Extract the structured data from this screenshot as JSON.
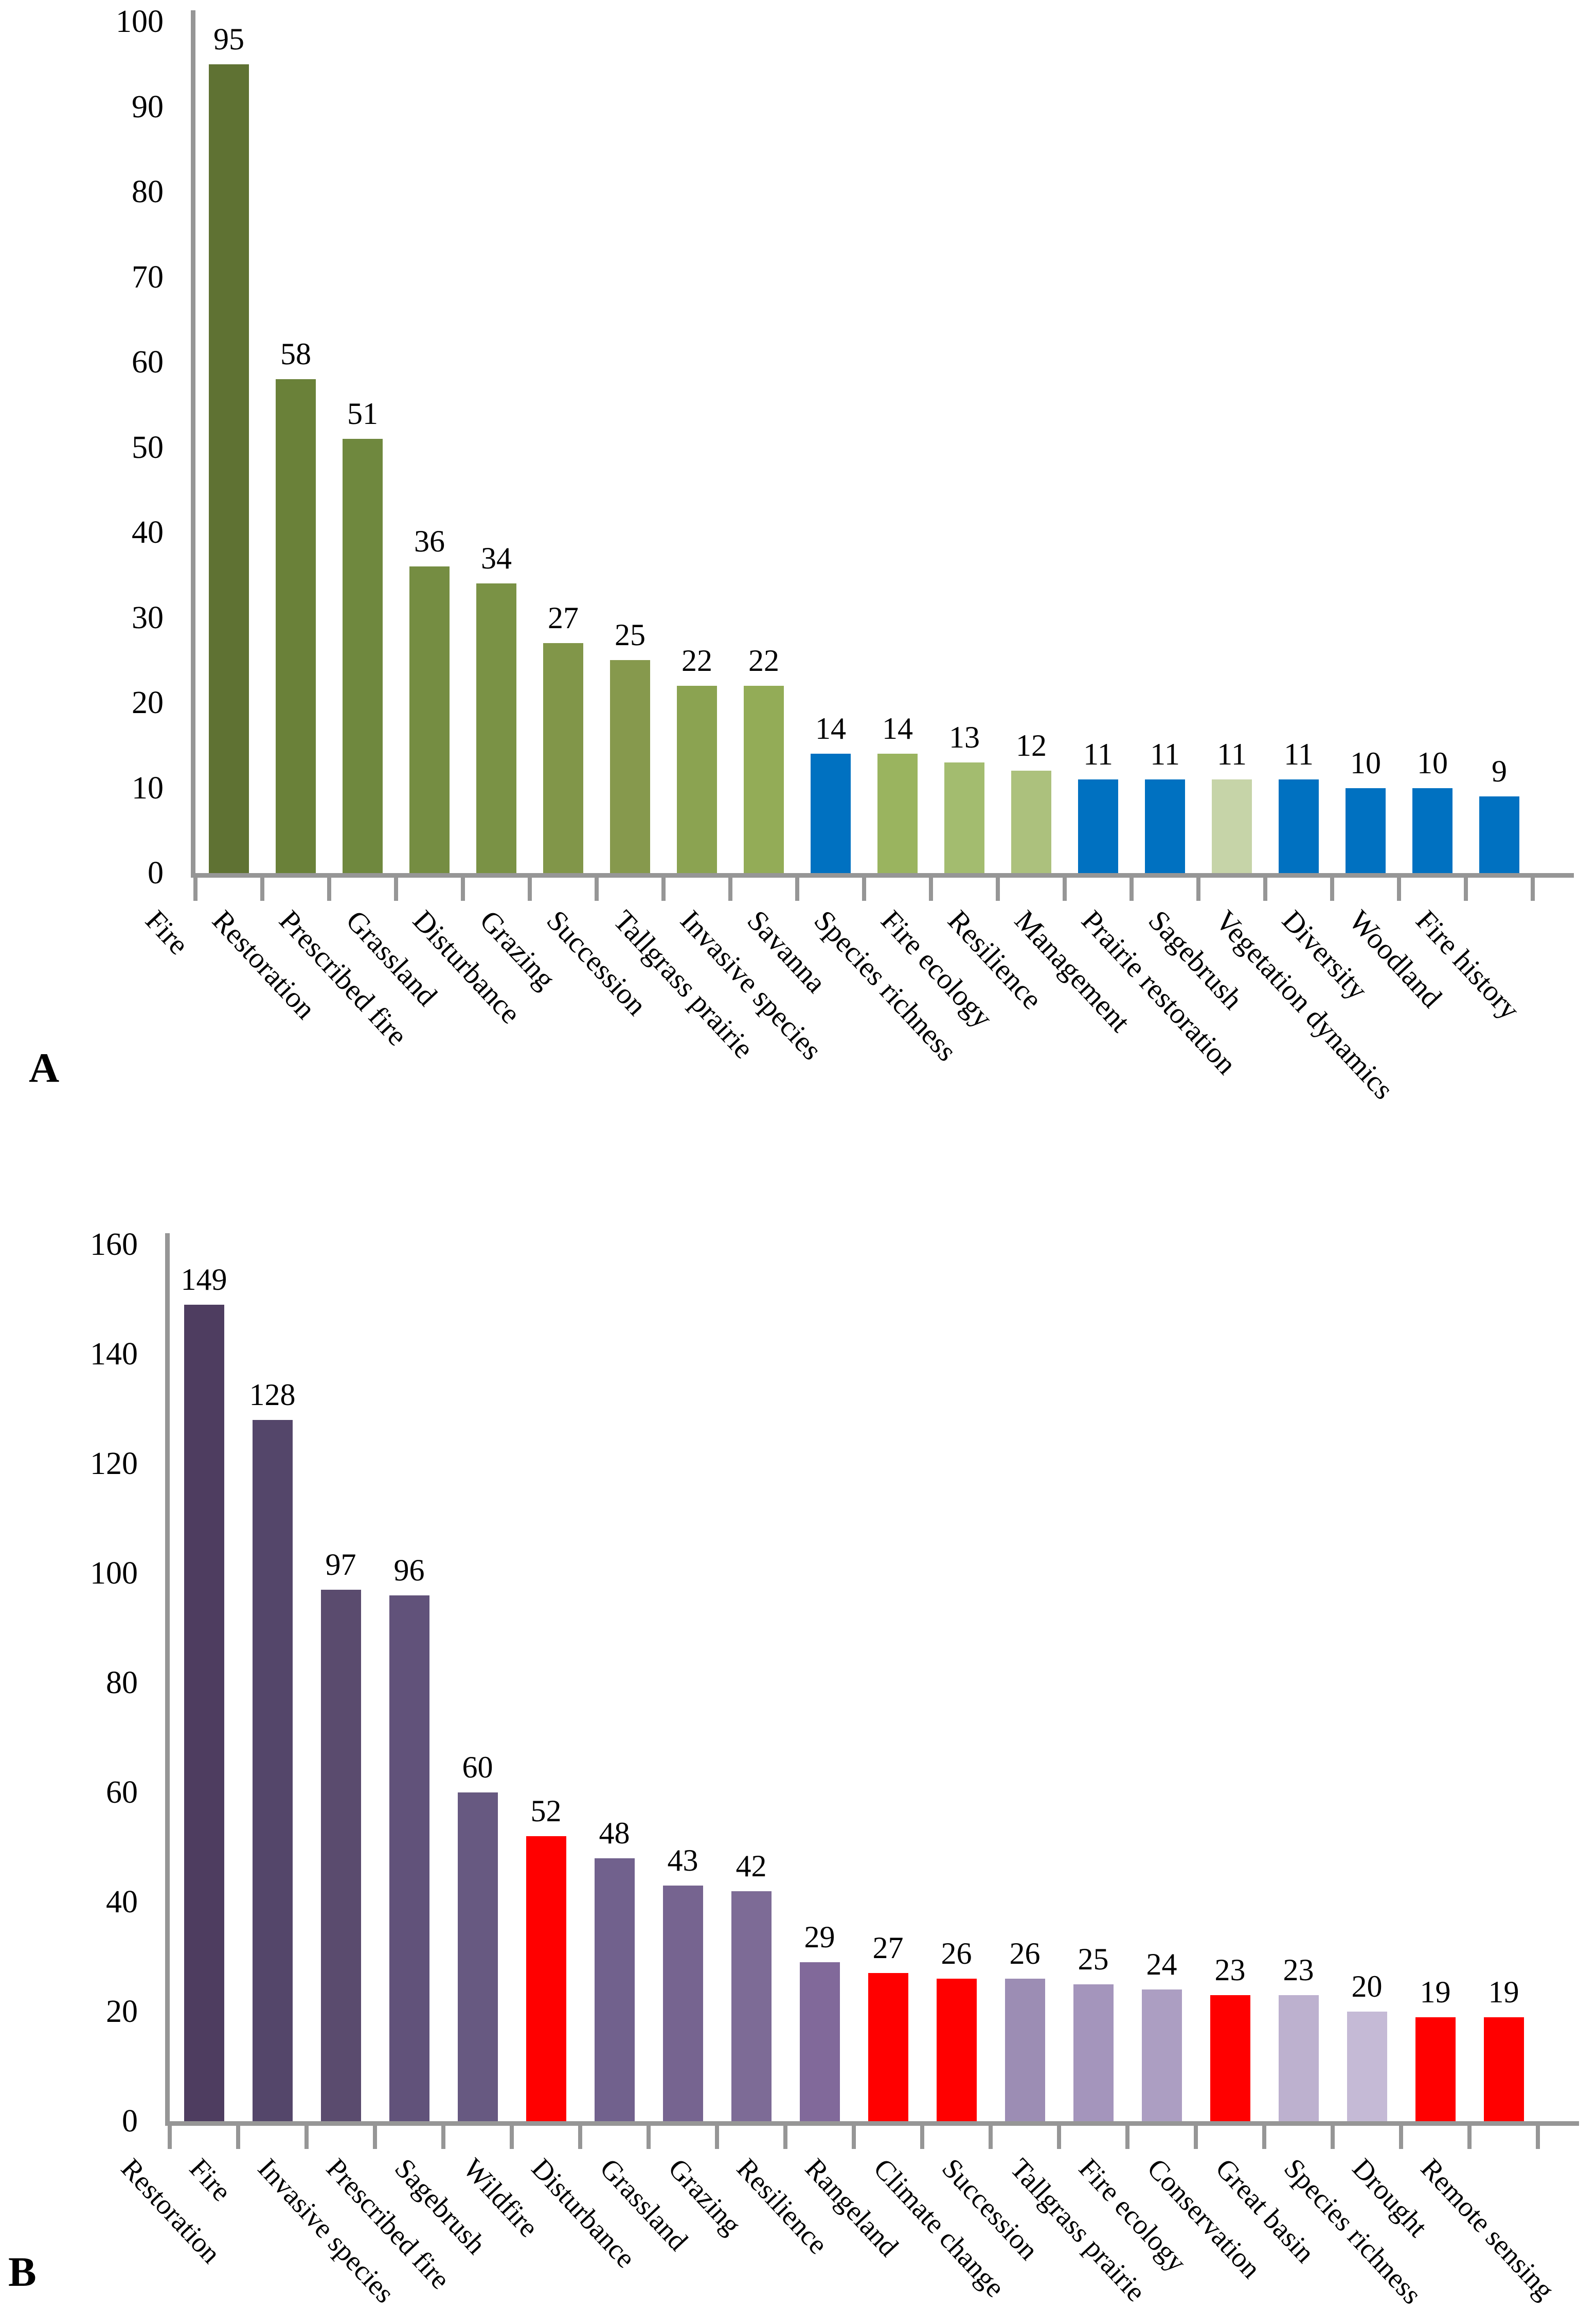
{
  "chart_data": [
    {
      "panel_label": "A",
      "type": "bar",
      "title": "",
      "xlabel": "",
      "ylabel": "",
      "ylim": [
        0,
        100
      ],
      "ytick_step": 10,
      "ytick_labels": [
        "0",
        "10",
        "20",
        "30",
        "40",
        "50",
        "60",
        "70",
        "80",
        "90",
        "100"
      ],
      "grid": false,
      "legend": false,
      "axis_color": "#969696",
      "text_color": "#000000",
      "categories": [
        "Fire",
        "Restoration",
        "Prescribed fire",
        "Grassland",
        "Disturbance",
        "Grazing",
        "Succession",
        "Tallgrass prairie",
        "Invasive species",
        "Savanna",
        "Species richness",
        "Fire ecology",
        "Resilience",
        "Management",
        "Prairie restoration",
        "Sagebrush",
        "Vegetation dynamics",
        "Diversity",
        "Woodland",
        "Fire history"
      ],
      "values": [
        95,
        58,
        51,
        36,
        34,
        27,
        25,
        22,
        22,
        14,
        14,
        13,
        12,
        11,
        11,
        11,
        11,
        10,
        10,
        9
      ],
      "bar_colors": [
        "#5F7233",
        "#6A8139",
        "#6F883E",
        "#758D42",
        "#7A9245",
        "#819649",
        "#86994D",
        "#8BA351",
        "#93AC57",
        "#0071C1",
        "#9AB45F",
        "#A3BC6F",
        "#ACC17D",
        "#0071C1",
        "#0071C1",
        "#C6D4A8",
        "#0071C1",
        "#0071C1",
        "#0071C1",
        "#0071C1"
      ],
      "highlight_color": "#0071C1"
    },
    {
      "panel_label": "B",
      "type": "bar",
      "title": "",
      "xlabel": "",
      "ylabel": "",
      "ylim": [
        0,
        160
      ],
      "ytick_step": 20,
      "ytick_labels": [
        "0",
        "20",
        "40",
        "60",
        "80",
        "100",
        "120",
        "140",
        "160"
      ],
      "grid": false,
      "legend": false,
      "axis_color": "#969696",
      "text_color": "#000000",
      "categories": [
        "Restoration",
        "Fire",
        "Invasive species",
        "Prescribed fire",
        "Sagebrush",
        "Wildfire",
        "Disturbance",
        "Grassland",
        "Grazing",
        "Resilience",
        "Rangeland",
        "Climate change",
        "Succession",
        "Tallgrass prairie",
        "Fire ecology",
        "Conservation",
        "Great basin",
        "Species richness",
        "Drought",
        "Remote sensing"
      ],
      "values": [
        149,
        128,
        97,
        96,
        60,
        52,
        48,
        43,
        42,
        29,
        27,
        26,
        26,
        25,
        24,
        23,
        23,
        20,
        19,
        19
      ],
      "bar_colors": [
        "#4E3D60",
        "#54466A",
        "#5A4B6E",
        "#61527A",
        "#675981",
        "#FF0000",
        "#71618D",
        "#766490",
        "#7D6B96",
        "#81699A",
        "#FF0000",
        "#FF0000",
        "#9C8DB4",
        "#A495BC",
        "#AC9EC2",
        "#FF0000",
        "#BDB1CF",
        "#C5BAD6",
        "#FF0000",
        "#FF0000"
      ],
      "highlight_color": "#FF0000"
    }
  ]
}
